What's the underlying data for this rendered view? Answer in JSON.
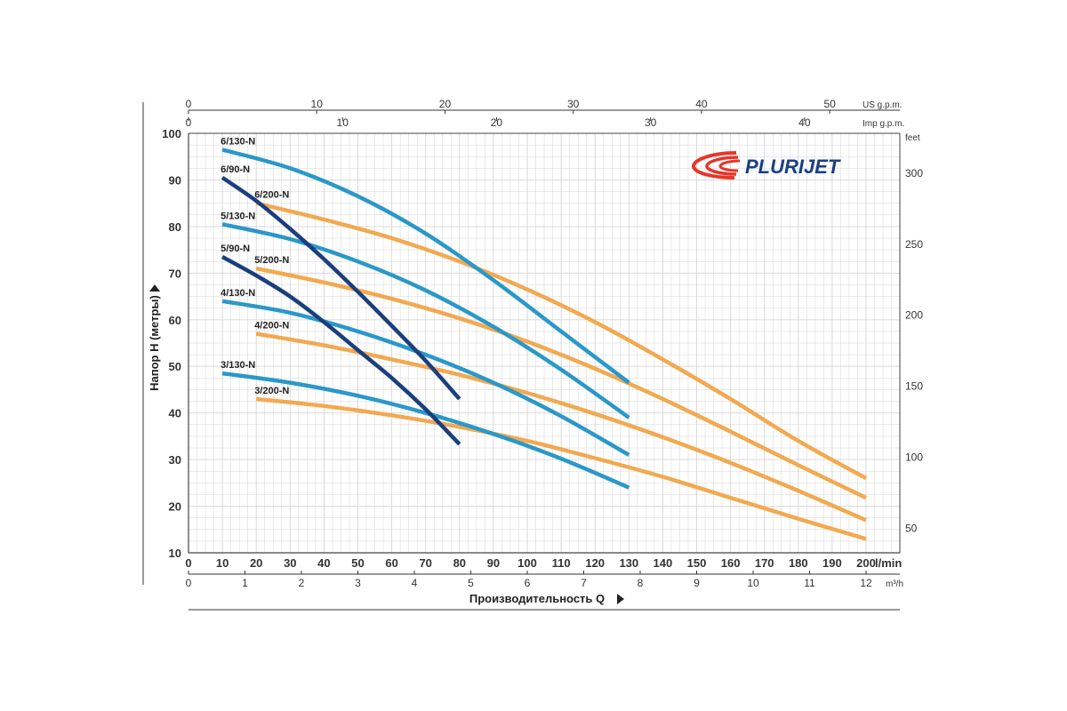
{
  "chart_data": {
    "type": "line",
    "logo_text": "PLURIJET",
    "xlabel": "Производительность Q",
    "ylabel": "Напор H (метры)",
    "x_unit": "l/min",
    "xlim": [
      0,
      200
    ],
    "ylim": [
      10,
      100
    ],
    "grid": true,
    "x_ticks": [
      0,
      10,
      20,
      30,
      40,
      50,
      60,
      70,
      80,
      90,
      100,
      110,
      120,
      130,
      140,
      150,
      160,
      170,
      180,
      190,
      200
    ],
    "y_ticks": [
      10,
      20,
      30,
      40,
      50,
      60,
      70,
      80,
      90,
      100
    ],
    "secondary_axes": {
      "m3h": {
        "unit": "m³/h",
        "ticks": [
          0,
          1,
          2,
          3,
          4,
          5,
          6,
          7,
          8,
          9,
          10,
          11,
          12
        ]
      },
      "us_gpm": {
        "unit": "US g.p.m.",
        "ticks": [
          0,
          10,
          20,
          30,
          40,
          50
        ]
      },
      "imp_gpm": {
        "unit": "Imp g.p.m.",
        "ticks": [
          0,
          10,
          20,
          30,
          40
        ]
      },
      "feet": {
        "unit": "feet",
        "ticks": [
          50,
          100,
          150,
          200,
          250,
          300
        ]
      }
    },
    "colors": {
      "series_130": "#2a98c8",
      "series_90": "#1b3f7c",
      "series_200": "#f2a950",
      "grid": "#d6d6d6",
      "logo_red": "#e8352a",
      "logo_blue": "#1a3e86"
    },
    "series": [
      {
        "name": "6/130-N",
        "color": "#2a98c8",
        "x": [
          10,
          30,
          50,
          70,
          90,
          110,
          130
        ],
        "y": [
          96.5,
          92.5,
          86.5,
          78.5,
          68.5,
          57.5,
          46.5
        ]
      },
      {
        "name": "5/130-N",
        "color": "#2a98c8",
        "x": [
          10,
          30,
          50,
          70,
          90,
          110,
          130
        ],
        "y": [
          80.5,
          77.3,
          72.5,
          66.3,
          58.5,
          49.3,
          39.0
        ]
      },
      {
        "name": "4/130-N",
        "color": "#2a98c8",
        "x": [
          10,
          30,
          50,
          70,
          90,
          110,
          130
        ],
        "y": [
          64.0,
          61.5,
          57.5,
          52.5,
          46.5,
          39.3,
          31.0
        ]
      },
      {
        "name": "3/130-N",
        "color": "#2a98c8",
        "x": [
          10,
          30,
          50,
          70,
          90,
          110,
          130
        ],
        "y": [
          48.5,
          46.5,
          43.7,
          40.0,
          35.5,
          30.2,
          24.0
        ]
      },
      {
        "name": "6/90-N",
        "color": "#1b3f7c",
        "x": [
          10,
          20,
          30,
          40,
          50,
          60,
          70,
          80
        ],
        "y": [
          90.5,
          85.5,
          79.5,
          73.0,
          66.0,
          58.7,
          51.2,
          43.0
        ]
      },
      {
        "name": "5/90-N",
        "color": "#1b3f7c",
        "x": [
          10,
          20,
          30,
          40,
          50,
          60,
          70,
          80
        ],
        "y": [
          73.5,
          69.5,
          65.0,
          59.5,
          53.5,
          47.5,
          40.8,
          33.3
        ]
      },
      {
        "name": "6/200-N",
        "color": "#f2a950",
        "x": [
          20,
          40,
          60,
          80,
          100,
          120,
          140,
          160,
          180,
          200
        ],
        "y": [
          85.0,
          81.5,
          77.5,
          72.5,
          66.5,
          59.5,
          51.5,
          43.0,
          34.0,
          26.0
        ]
      },
      {
        "name": "5/200-N",
        "color": "#f2a950",
        "x": [
          20,
          40,
          60,
          80,
          100,
          120,
          140,
          160,
          180,
          200
        ],
        "y": [
          71.0,
          68.0,
          64.5,
          60.3,
          55.3,
          49.5,
          43.0,
          36.0,
          28.8,
          21.8
        ]
      },
      {
        "name": "4/200-N",
        "color": "#f2a950",
        "x": [
          20,
          40,
          60,
          80,
          100,
          120,
          140,
          160,
          180,
          200
        ],
        "y": [
          57.0,
          54.5,
          51.5,
          48.2,
          44.3,
          39.8,
          34.8,
          29.3,
          23.3,
          17.0
        ]
      },
      {
        "name": "3/200-N",
        "color": "#f2a950",
        "x": [
          20,
          40,
          60,
          80,
          100,
          120,
          140,
          160,
          180,
          200
        ],
        "y": [
          43.0,
          41.5,
          39.5,
          37.0,
          34.0,
          30.3,
          26.3,
          21.8,
          17.3,
          13.0
        ]
      }
    ]
  }
}
